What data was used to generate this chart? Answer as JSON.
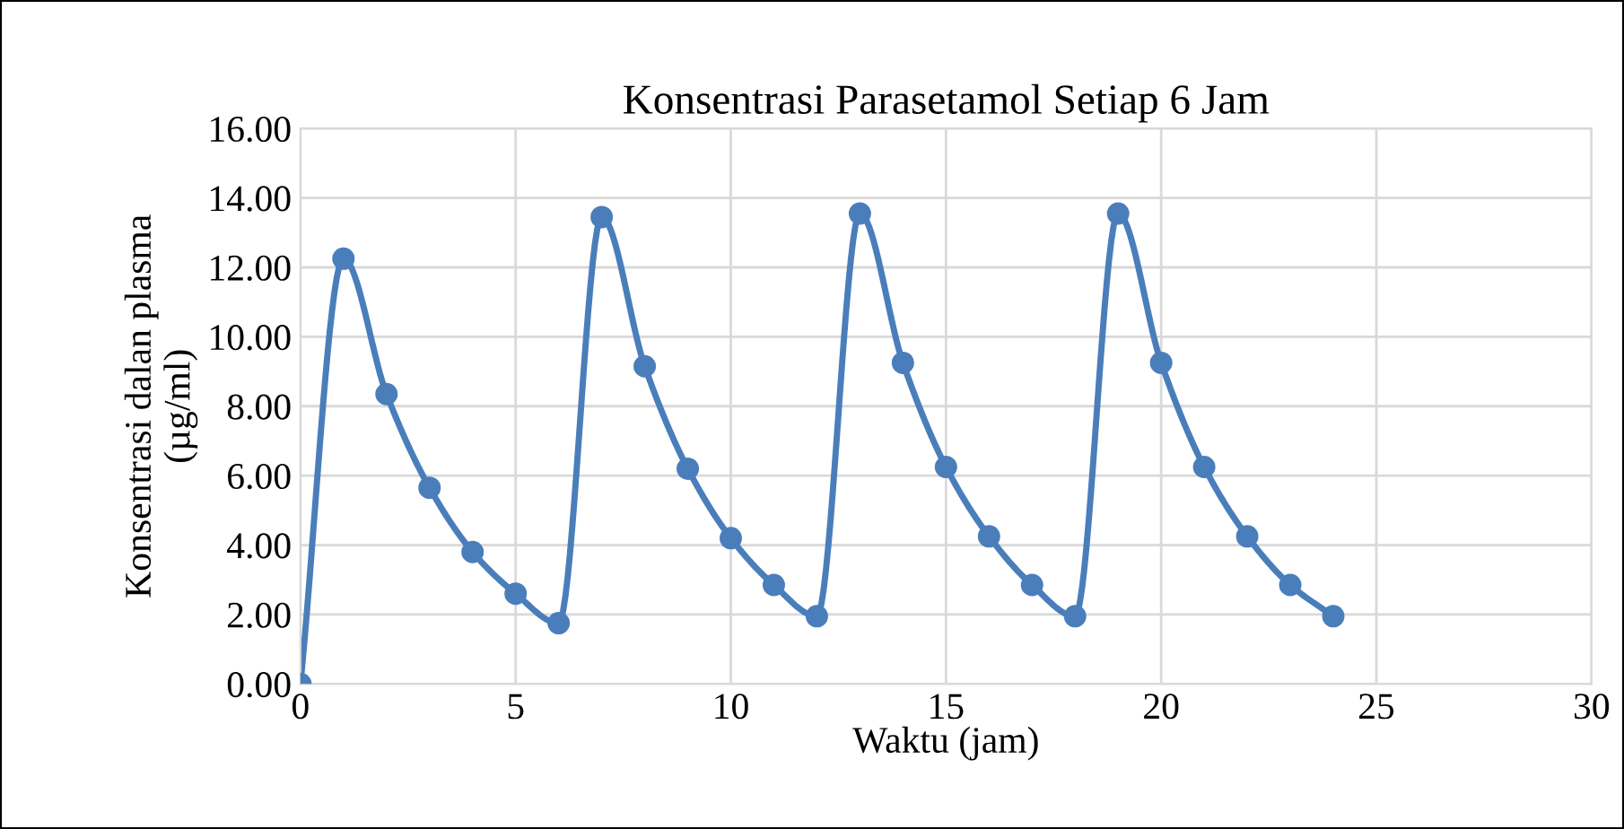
{
  "chart_data": {
    "type": "line",
    "title": "Konsentrasi Parasetamol Setiap 6 Jam",
    "xlabel": "Waktu (jam)",
    "ylabel": "Konsentrasi dalan plasma\n(µg/ml)",
    "x": [
      0,
      1,
      2,
      3,
      4,
      5,
      6,
      7,
      8,
      9,
      10,
      11,
      12,
      13,
      14,
      15,
      16,
      17,
      18,
      19,
      20,
      21,
      22,
      23,
      24
    ],
    "series": [
      {
        "color": "#4a7ebb",
        "values": [
          0,
          12.25,
          8.35,
          5.65,
          3.8,
          2.6,
          1.75,
          13.45,
          9.15,
          6.2,
          4.2,
          2.85,
          1.95,
          13.55,
          9.25,
          6.25,
          4.25,
          2.85,
          1.95,
          13.55,
          9.25,
          6.25,
          4.25,
          2.85,
          1.95
        ]
      }
    ],
    "xlim": [
      0,
      30
    ],
    "xticks": [
      0,
      5,
      10,
      15,
      20,
      25,
      30
    ],
    "ylim": [
      0,
      16
    ],
    "yticks": [
      {
        "value": 0,
        "label": "0.00"
      },
      {
        "value": 2,
        "label": "2.00"
      },
      {
        "value": 4,
        "label": "4.00"
      },
      {
        "value": 6,
        "label": "6.00"
      },
      {
        "value": 8,
        "label": "8.00"
      },
      {
        "value": 10,
        "label": "10.00"
      },
      {
        "value": 12,
        "label": "12.00"
      },
      {
        "value": 14,
        "label": "14.00"
      },
      {
        "value": 16,
        "label": "16.00"
      }
    ],
    "grid": true,
    "marker": "circle",
    "line_style": "solid"
  }
}
